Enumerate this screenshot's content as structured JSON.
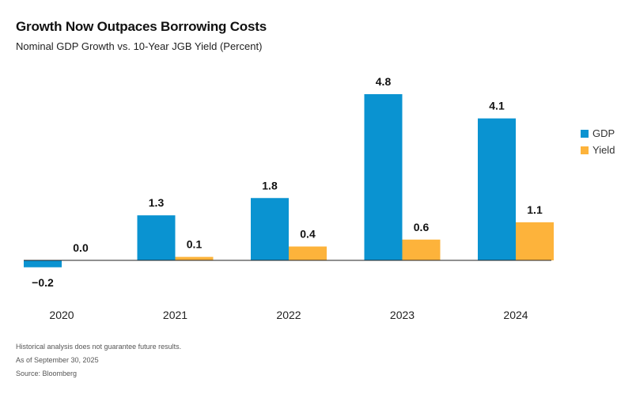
{
  "title": "Growth Now Outpaces Borrowing Costs",
  "subtitle": "Nominal GDP Growth vs. 10-Year JGB Yield (Percent)",
  "footnotes": [
    "Historical analysis does not guarantee future results.",
    "As of September 30, 2025",
    "Source: Bloomberg"
  ],
  "chart_data": {
    "type": "bar",
    "categories": [
      "2020",
      "2021",
      "2022",
      "2023",
      "2024"
    ],
    "series": [
      {
        "name": "GDP",
        "color": "#0a93d1",
        "values": [
          -0.2,
          1.3,
          1.8,
          4.8,
          4.1
        ],
        "labels": [
          "−0.2",
          "1.3",
          "1.8",
          "4.8",
          "4.1"
        ]
      },
      {
        "name": "Yield",
        "color": "#fdb33b",
        "values": [
          0.0,
          0.1,
          0.4,
          0.6,
          1.1
        ],
        "labels": [
          "0.0",
          "0.1",
          "0.4",
          "0.6",
          "1.1"
        ]
      }
    ],
    "ylim": [
      -0.2,
      4.8
    ],
    "legend": "right",
    "grid": false
  }
}
